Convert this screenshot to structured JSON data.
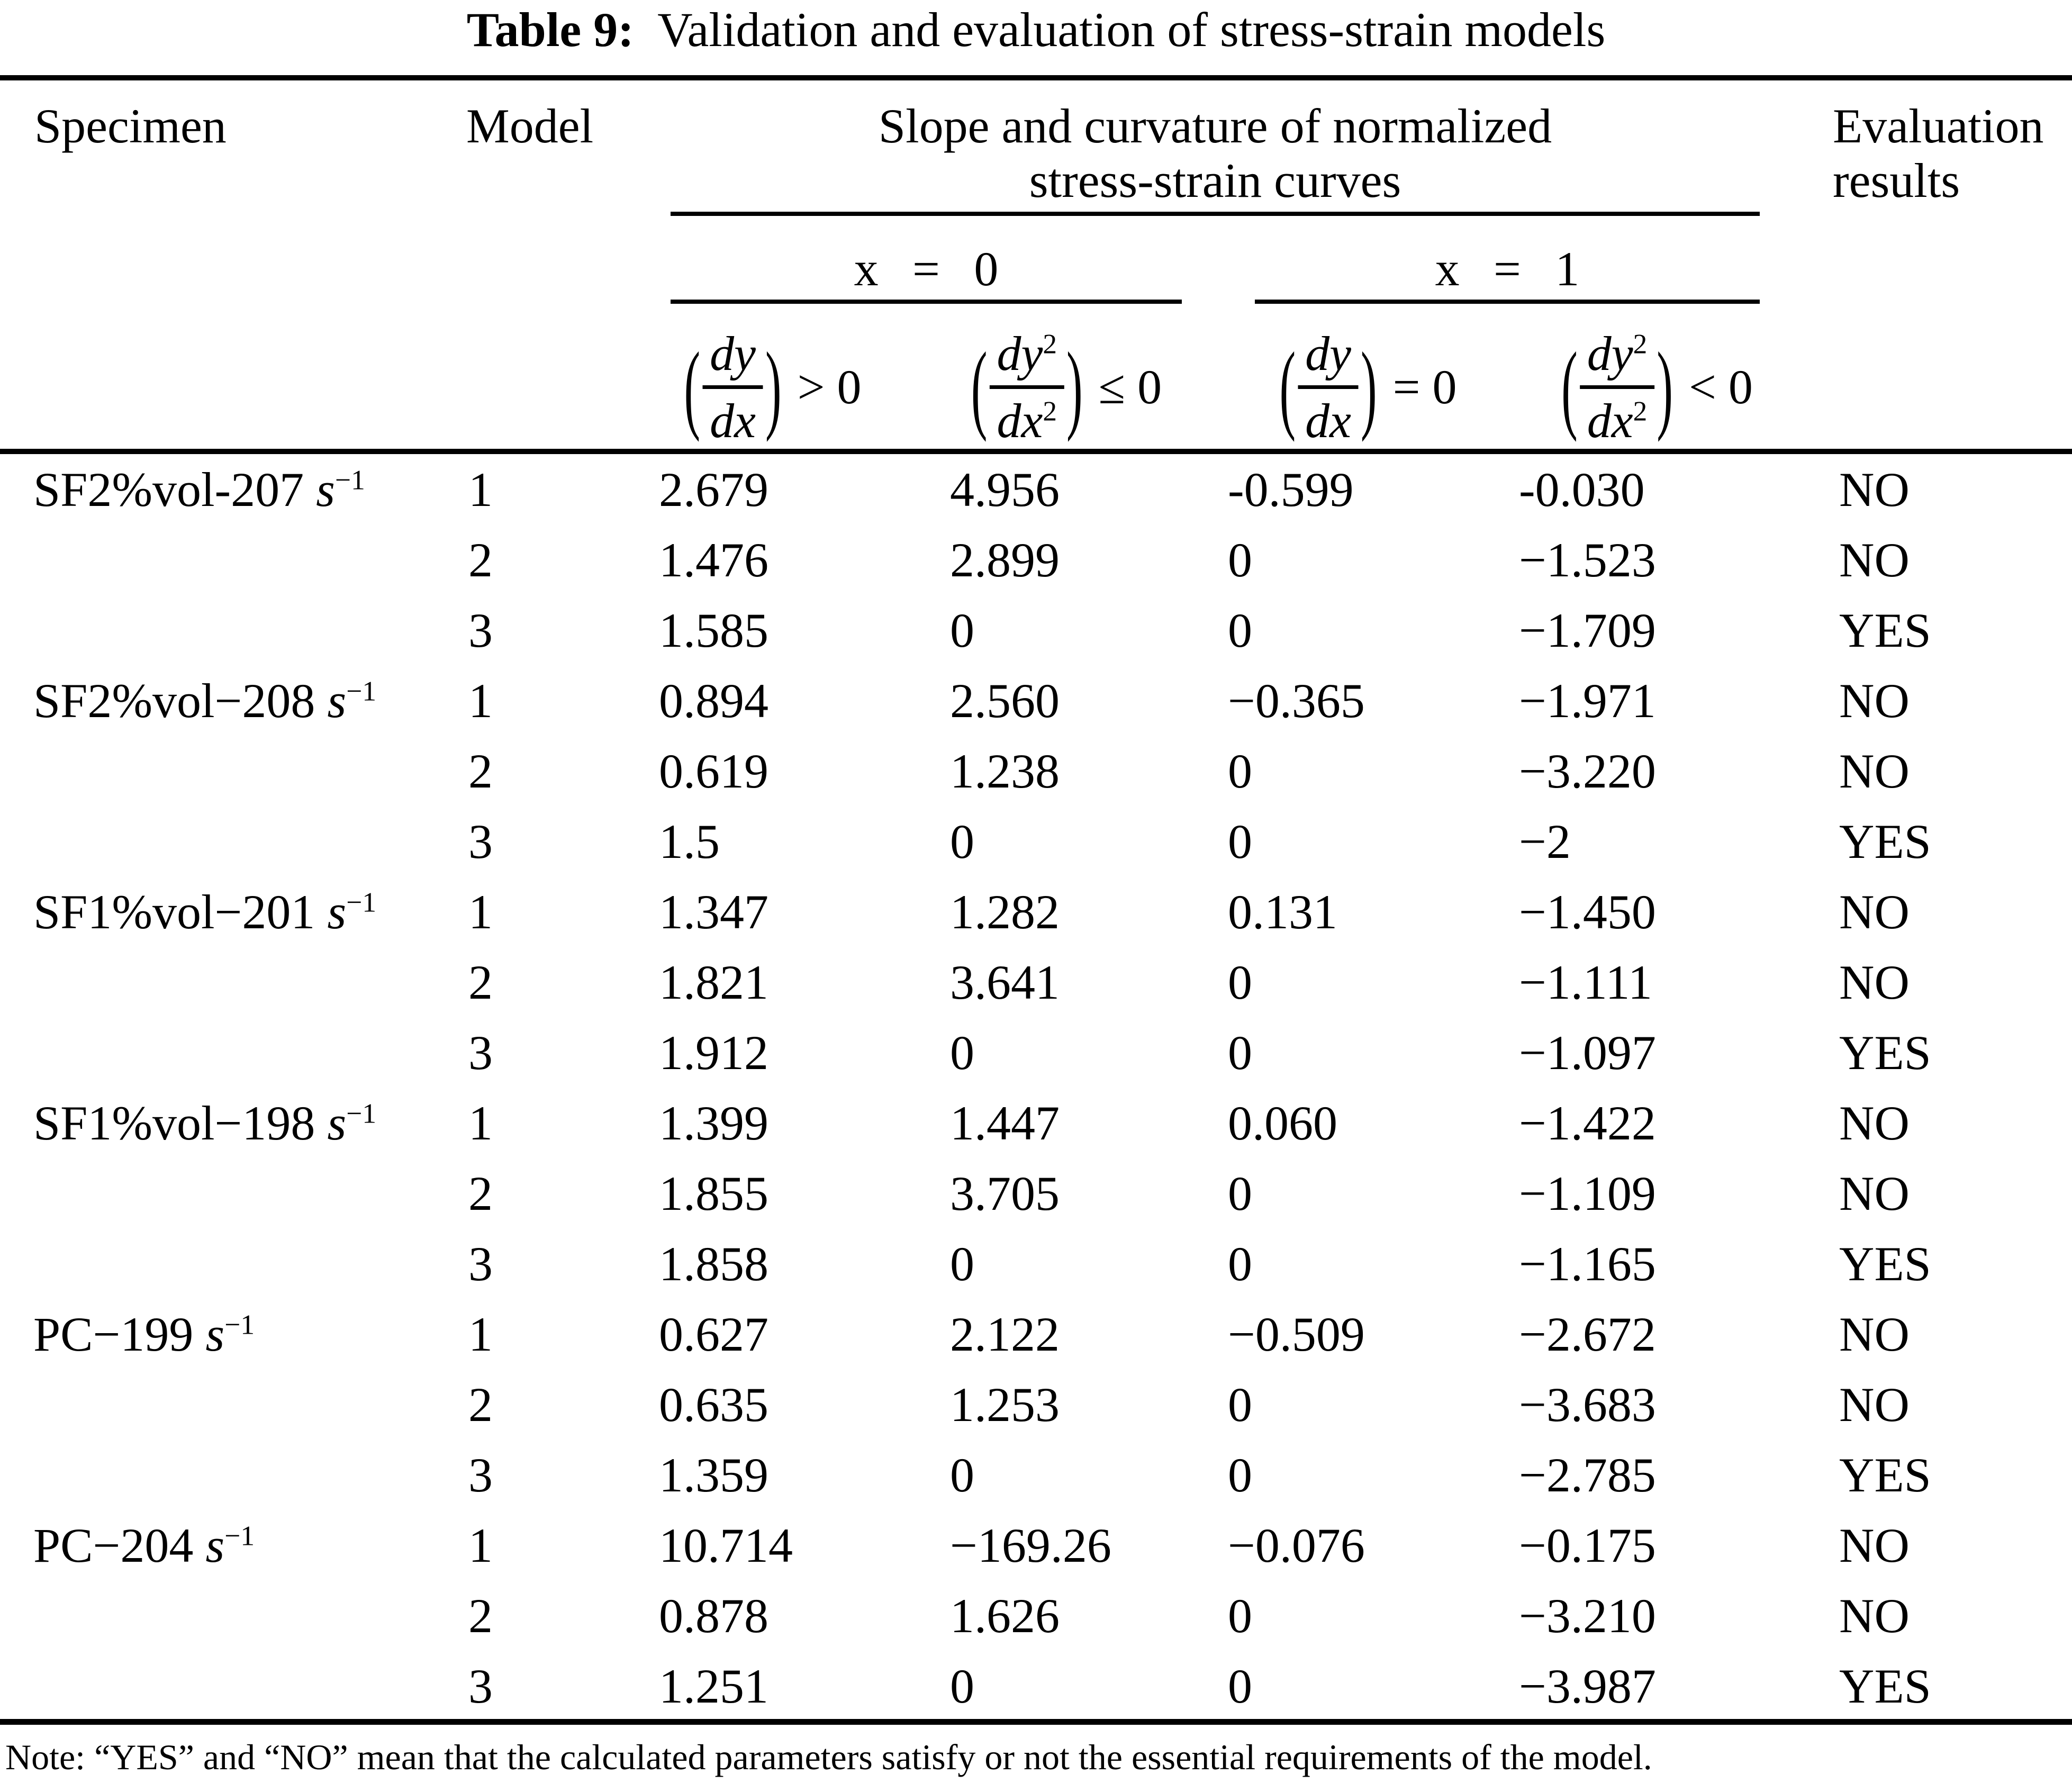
{
  "title": {
    "prefix": "Table 9:",
    "rest": "  Validation and evaluation of stress-strain models"
  },
  "header": {
    "specimen": "Specimen",
    "model": "Model",
    "group_line1": "Slope and curvature of normalized",
    "group_line2": "stress-strain curves",
    "eval_line1": "Evaluation",
    "eval_line2": "results",
    "x0": "x = 0",
    "x1": "x = 1",
    "subcols": [
      {
        "num": "dy",
        "num_sup": "",
        "den": "dx",
        "den_sup": "",
        "rel": "> 0"
      },
      {
        "num": "dy",
        "num_sup": "2",
        "den": "dx",
        "den_sup": "2",
        "rel": "≤ 0"
      },
      {
        "num": "dy",
        "num_sup": "",
        "den": "dx",
        "den_sup": "",
        "rel": "= 0"
      },
      {
        "num": "dy",
        "num_sup": "2",
        "den": "dx",
        "den_sup": "2",
        "rel": "< 0"
      }
    ]
  },
  "table": {
    "rows": [
      {
        "sp_prefix": "SF2%vol-207 ",
        "sp_unit": "s",
        "sp_sup": "−1",
        "model": "1",
        "c1": "2.679",
        "c2": "4.956",
        "c3": "-0.599",
        "c4": "-0.030",
        "eval": "NO"
      },
      {
        "sp_prefix": "",
        "sp_unit": "",
        "sp_sup": "",
        "model": "2",
        "c1": "1.476",
        "c2": "2.899",
        "c3": "0",
        "c4": "−1.523",
        "eval": "NO"
      },
      {
        "sp_prefix": "",
        "sp_unit": "",
        "sp_sup": "",
        "model": "3",
        "c1": "1.585",
        "c2": "0",
        "c3": "0",
        "c4": "−1.709",
        "eval": "YES"
      },
      {
        "sp_prefix": "SF2%vol−208 ",
        "sp_unit": "s",
        "sp_sup": "−1",
        "model": "1",
        "c1": "0.894",
        "c2": "2.560",
        "c3": "−0.365",
        "c4": "−1.971",
        "eval": "NO"
      },
      {
        "sp_prefix": "",
        "sp_unit": "",
        "sp_sup": "",
        "model": "2",
        "c1": "0.619",
        "c2": "1.238",
        "c3": "0",
        "c4": "−3.220",
        "eval": "NO"
      },
      {
        "sp_prefix": "",
        "sp_unit": "",
        "sp_sup": "",
        "model": "3",
        "c1": "1.5",
        "c2": "0",
        "c3": "0",
        "c4": "−2",
        "eval": "YES"
      },
      {
        "sp_prefix": "SF1%vol−201 ",
        "sp_unit": "s",
        "sp_sup": "−1",
        "model": "1",
        "c1": "1.347",
        "c2": "1.282",
        "c3": "0.131",
        "c4": "−1.450",
        "eval": "NO"
      },
      {
        "sp_prefix": "",
        "sp_unit": "",
        "sp_sup": "",
        "model": "2",
        "c1": "1.821",
        "c2": "3.641",
        "c3": "0",
        "c4": "−1.111",
        "eval": "NO"
      },
      {
        "sp_prefix": "",
        "sp_unit": "",
        "sp_sup": "",
        "model": "3",
        "c1": "1.912",
        "c2": "0",
        "c3": "0",
        "c4": "−1.097",
        "eval": "YES"
      },
      {
        "sp_prefix": "SF1%vol−198 ",
        "sp_unit": "s",
        "sp_sup": "−1",
        "model": "1",
        "c1": "1.399",
        "c2": "1.447",
        "c3": "0.060",
        "c4": "−1.422",
        "eval": "NO"
      },
      {
        "sp_prefix": "",
        "sp_unit": "",
        "sp_sup": "",
        "model": "2",
        "c1": "1.855",
        "c2": "3.705",
        "c3": "0",
        "c4": "−1.109",
        "eval": "NO"
      },
      {
        "sp_prefix": "",
        "sp_unit": "",
        "sp_sup": "",
        "model": "3",
        "c1": "1.858",
        "c2": "0",
        "c3": "0",
        "c4": "−1.165",
        "eval": "YES"
      },
      {
        "sp_prefix": "PC−199 ",
        "sp_unit": "s",
        "sp_sup": "−1",
        "model": "1",
        "c1": "0.627",
        "c2": "2.122",
        "c3": "−0.509",
        "c4": "−2.672",
        "eval": "NO"
      },
      {
        "sp_prefix": "",
        "sp_unit": "",
        "sp_sup": "",
        "model": "2",
        "c1": "0.635",
        "c2": "1.253",
        "c3": "0",
        "c4": "−3.683",
        "eval": "NO"
      },
      {
        "sp_prefix": "",
        "sp_unit": "",
        "sp_sup": "",
        "model": "3",
        "c1": "1.359",
        "c2": "0",
        "c3": "0",
        "c4": "−2.785",
        "eval": "YES"
      },
      {
        "sp_prefix": "PC−204 ",
        "sp_unit": "s",
        "sp_sup": "−1",
        "model": "1",
        "c1": "10.714",
        "c2": "−169.26",
        "c3": "−0.076",
        "c4": "−0.175",
        "eval": "NO"
      },
      {
        "sp_prefix": "",
        "sp_unit": "",
        "sp_sup": "",
        "model": "2",
        "c1": "0.878",
        "c2": "1.626",
        "c3": "0",
        "c4": "−3.210",
        "eval": "NO"
      },
      {
        "sp_prefix": "",
        "sp_unit": "",
        "sp_sup": "",
        "model": "3",
        "c1": "1.251",
        "c2": "0",
        "c3": "0",
        "c4": "−3.987",
        "eval": "YES"
      }
    ]
  },
  "note": {
    "text": "Note: “YES” and “NO” mean that the calculated parameters satisfy or not the essential requirements of the model."
  },
  "colors": {
    "text": "#000000",
    "background": "#ffffff",
    "rule": "#000000"
  }
}
